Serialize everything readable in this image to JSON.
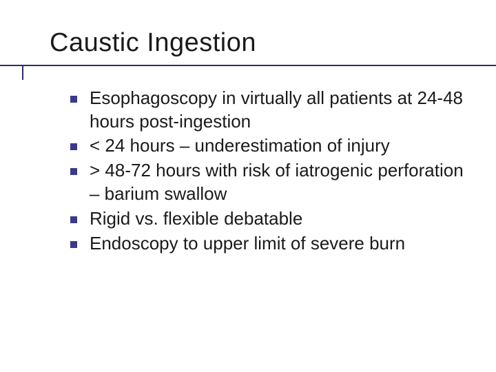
{
  "slide": {
    "title": "Caustic Ingestion",
    "title_color": "#1a1a1a",
    "title_fontsize": 38,
    "underline_color": "#2a2a6a",
    "bullet_color": "#3a3a8a",
    "bullet_size": 10,
    "body_fontsize": 26,
    "body_color": "#1a1a1a",
    "background_color": "#ffffff",
    "bullets": [
      "Esophagoscopy in virtually all patients at 24-48 hours post-ingestion",
      "< 24 hours – underestimation of injury",
      "> 48-72 hours with risk of iatrogenic perforation – barium swallow",
      "Rigid vs. flexible debatable",
      "Endoscopy to upper limit of severe burn"
    ]
  }
}
